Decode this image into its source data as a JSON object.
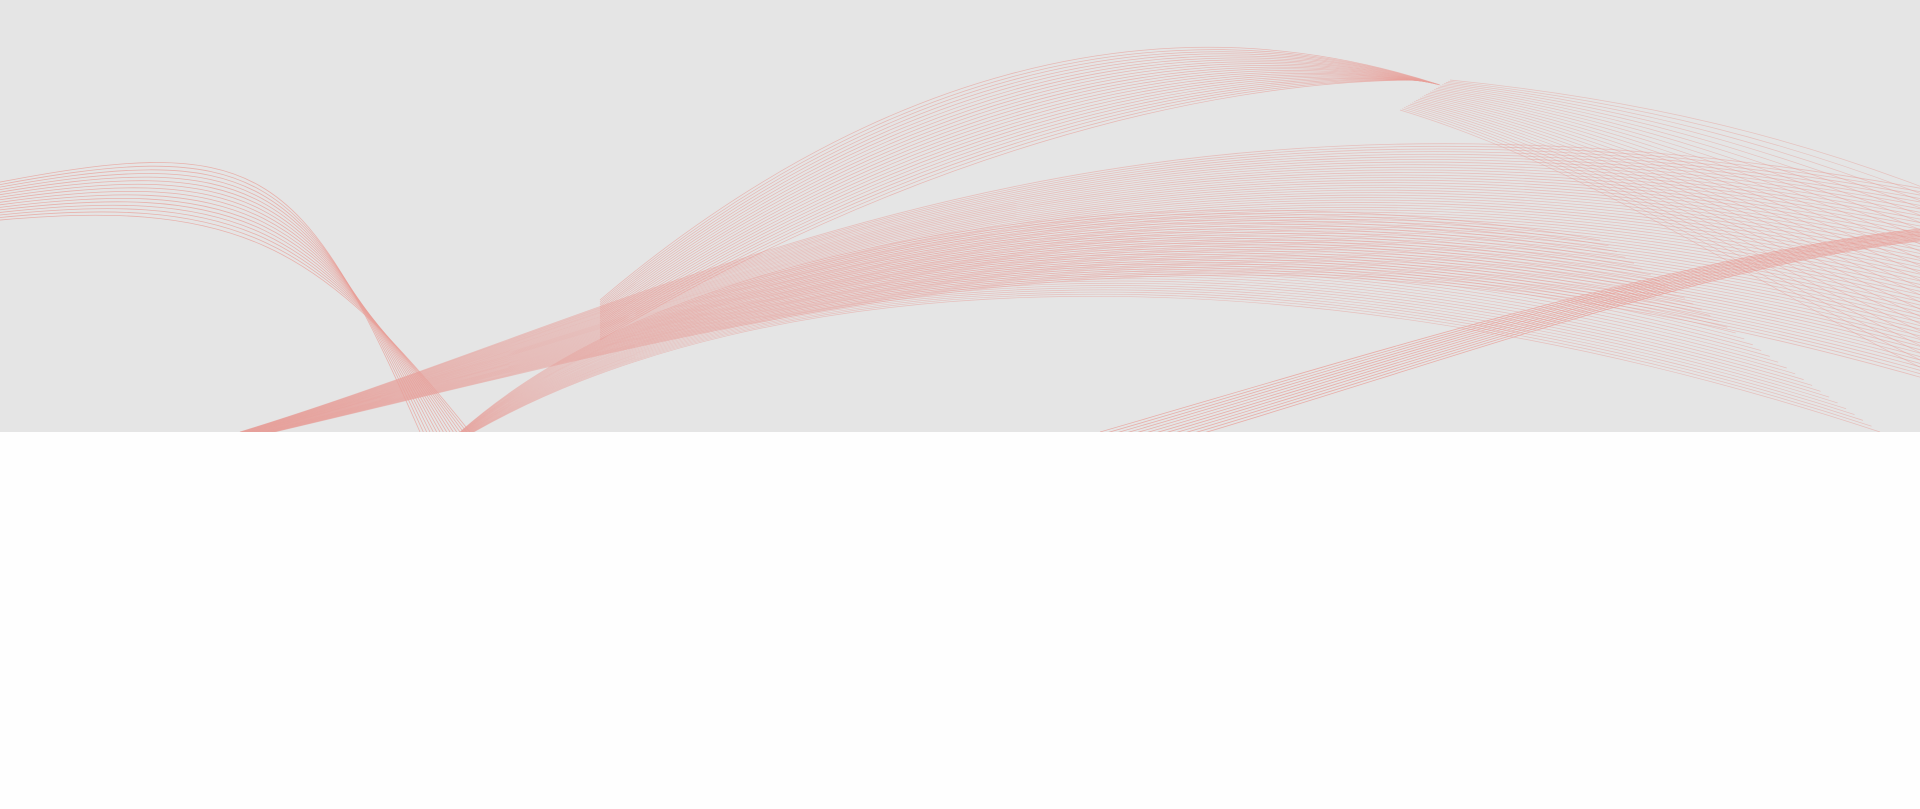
{
  "hero": {
    "background_color": "#e5e5e5",
    "wave_color": "#e8a09a",
    "wave_pattern": "decorative-line-waves"
  },
  "content": {
    "background_color": "#fefefe"
  }
}
